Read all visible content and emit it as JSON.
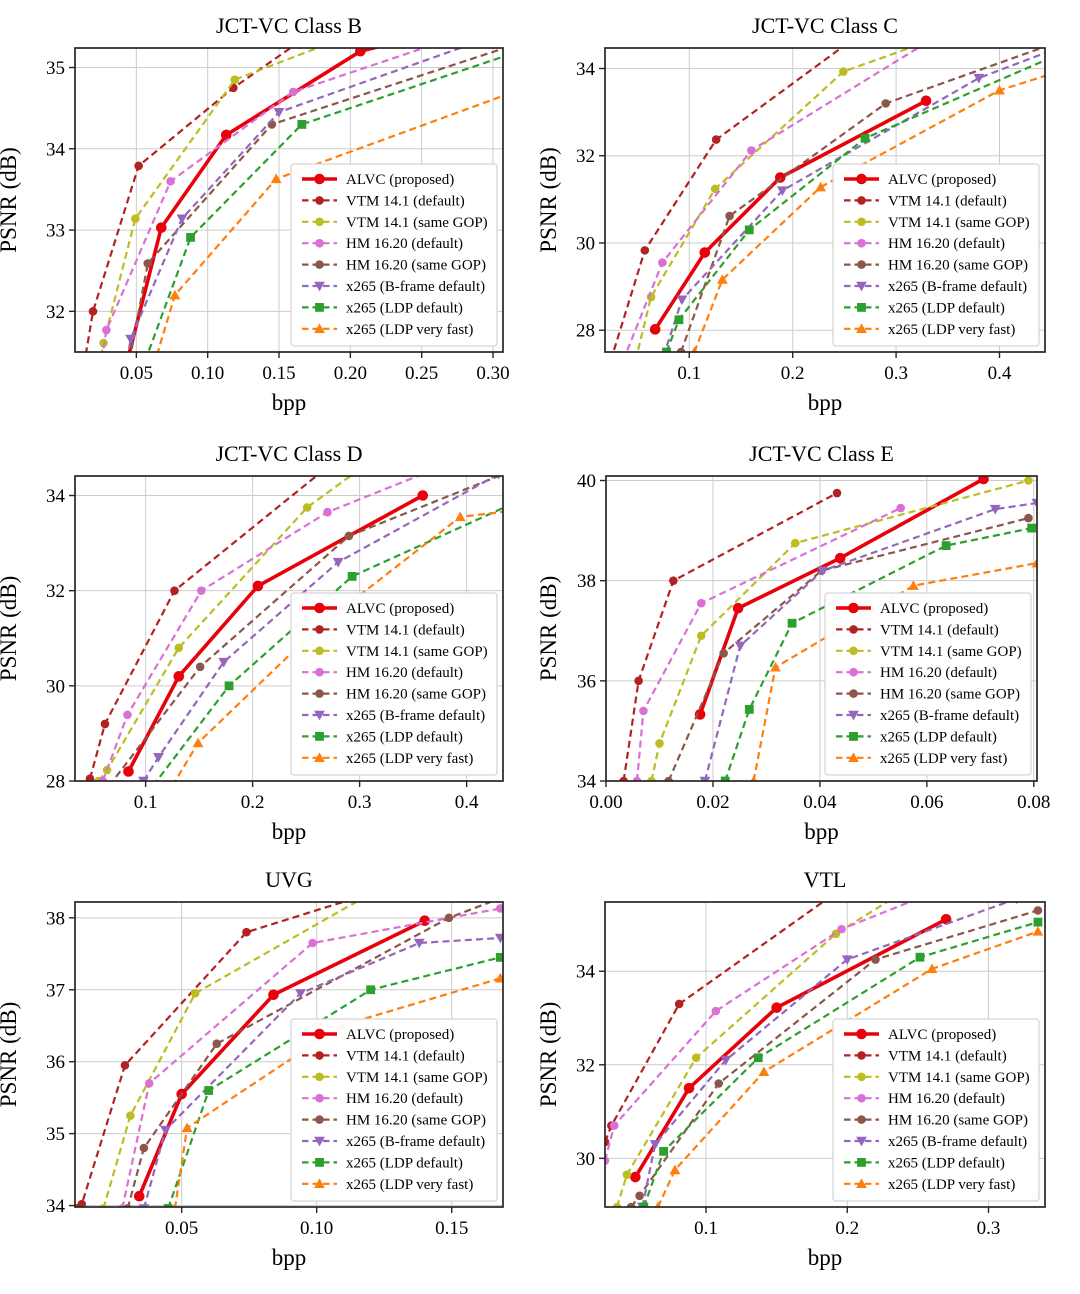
{
  "figure": {
    "background": "#ffffff",
    "grid_color": "#cccccc",
    "spine_color": "#262626",
    "legend_border_color": "#d5d5d5",
    "legend_background": "#ffffff"
  },
  "series_styles": [
    {
      "name": "ALVC (proposed)",
      "color": "#e8000b",
      "line": "solid",
      "width": 3.6,
      "marker": "circle",
      "marker_size": 5.3
    },
    {
      "name": "VTM 14.1 (default)",
      "color": "#b22222",
      "line": "dashed",
      "width": 2.2,
      "marker": "circle",
      "marker_size": 4.3
    },
    {
      "name": "VTM 14.1 (same GOP)",
      "color": "#bcbd22",
      "line": "dashed",
      "width": 2.2,
      "marker": "circle",
      "marker_size": 4.3
    },
    {
      "name": "HM 16.20 (default)",
      "color": "#da70d6",
      "line": "dashed",
      "width": 2.2,
      "marker": "circle",
      "marker_size": 4.3
    },
    {
      "name": "HM 16.20 (same GOP)",
      "color": "#8c564b",
      "line": "dashed",
      "width": 2.2,
      "marker": "circle",
      "marker_size": 4.3
    },
    {
      "name": "x265 (B-frame default)",
      "color": "#9467bd",
      "line": "dashed",
      "width": 2.2,
      "marker": "triangle-down",
      "marker_size": 5.4
    },
    {
      "name": "x265 (LDP default)",
      "color": "#2ca02c",
      "line": "dashed",
      "width": 2.2,
      "marker": "square",
      "marker_size": 4.4
    },
    {
      "name": "x265 (LDP very fast)",
      "color": "#ff7f0e",
      "line": "dashed",
      "width": 2.2,
      "marker": "triangle-up",
      "marker_size": 5.4
    }
  ],
  "chart_data": [
    {
      "id": "jctvc-class-b",
      "type": "line",
      "title": "JCT-VC Class B",
      "xlabel": "bpp",
      "ylabel": "PSNR (dB)",
      "xlim": [
        0.007,
        0.307
      ],
      "ylim": [
        31.5,
        35.24
      ],
      "xticks": [
        0.05,
        0.1,
        0.15,
        0.2,
        0.25,
        0.3
      ],
      "xtick_labels": [
        "0.05",
        "0.10",
        "0.15",
        "0.20",
        "0.25",
        "0.30"
      ],
      "yticks": [
        32,
        33,
        34,
        35
      ],
      "ytick_labels": [
        "32",
        "33",
        "34",
        "35"
      ],
      "grid": true,
      "legend_position": "lower right",
      "series": [
        {
          "name": "ALVC (proposed)",
          "x": [
            0.038,
            0.0675,
            0.113,
            0.207,
            0.23
          ],
          "y": [
            31.0,
            33.03,
            34.17,
            35.2,
            35.3
          ]
        },
        {
          "name": "VTM 14.1 (default)",
          "x": [
            0.012,
            0.0196,
            0.0516,
            0.118,
            0.19
          ],
          "y": [
            31.2,
            32.0,
            33.79,
            34.75,
            35.63
          ]
        },
        {
          "name": "VTM 14.1 (same GOP)",
          "x": [
            0.02,
            0.027,
            0.0493,
            0.119,
            0.19
          ],
          "y": [
            30.9,
            31.61,
            33.14,
            34.85,
            35.33
          ]
        },
        {
          "name": "HM 16.20 (default)",
          "x": [
            0.022,
            0.029,
            0.074,
            0.16,
            0.27
          ],
          "y": [
            31.0,
            31.77,
            33.6,
            34.7,
            35.35
          ]
        },
        {
          "name": "HM 16.20 (same GOP)",
          "x": [
            0.041,
            0.058,
            0.145,
            0.31
          ],
          "y": [
            31.0,
            32.59,
            34.3,
            35.25
          ]
        },
        {
          "name": "x265 (B-frame default)",
          "x": [
            0.04,
            0.046,
            0.082,
            0.15,
            0.29
          ],
          "y": [
            31.0,
            31.66,
            33.14,
            34.45,
            35.32
          ]
        },
        {
          "name": "x265 (LDP default)",
          "x": [
            0.048,
            0.088,
            0.166,
            0.31
          ],
          "y": [
            31.0,
            32.91,
            34.3,
            35.15
          ]
        },
        {
          "name": "x265 (LDP very fast)",
          "x": [
            0.06,
            0.077,
            0.148,
            0.31
          ],
          "y": [
            31.2,
            32.2,
            33.63,
            34.67
          ]
        }
      ]
    },
    {
      "id": "jctvc-class-c",
      "type": "line",
      "title": "JCT-VC Class C",
      "xlabel": "bpp",
      "ylabel": "PSNR (dB)",
      "xlim": [
        0.0185,
        0.444
      ],
      "ylim": [
        27.5,
        34.47
      ],
      "xticks": [
        0.1,
        0.2,
        0.3,
        0.4
      ],
      "xtick_labels": [
        "0.1",
        "0.2",
        "0.3",
        "0.4"
      ],
      "yticks": [
        28,
        30,
        32,
        34
      ],
      "ytick_labels": [
        "28",
        "30",
        "32",
        "34"
      ],
      "grid": true,
      "legend_position": "lower right",
      "series": [
        {
          "name": "ALVC (proposed)",
          "x": [
            0.067,
            0.115,
            0.188,
            0.329
          ],
          "y": [
            28.02,
            29.78,
            31.5,
            33.26
          ]
        },
        {
          "name": "VTM 14.1 (default)",
          "x": [
            0.024,
            0.057,
            0.126,
            0.26
          ],
          "y": [
            27.3,
            29.83,
            32.37,
            34.7
          ]
        },
        {
          "name": "VTM 14.1 (same GOP)",
          "x": [
            0.048,
            0.063,
            0.125,
            0.249,
            0.34
          ],
          "y": [
            27.3,
            28.76,
            31.24,
            33.93,
            34.7
          ]
        },
        {
          "name": "HM 16.20 (default)",
          "x": [
            0.036,
            0.074,
            0.16,
            0.33
          ],
          "y": [
            27.3,
            29.55,
            32.12,
            34.6
          ]
        },
        {
          "name": "HM 16.20 (same GOP)",
          "x": [
            0.092,
            0.139,
            0.29,
            0.45
          ],
          "y": [
            27.5,
            30.62,
            33.2,
            34.55
          ]
        },
        {
          "name": "x265 (B-frame default)",
          "x": [
            0.075,
            0.093,
            0.19,
            0.38,
            0.46
          ],
          "y": [
            27.4,
            28.7,
            31.2,
            33.78,
            34.5
          ]
        },
        {
          "name": "x265 (LDP default)",
          "x": [
            0.078,
            0.09,
            0.158,
            0.27,
            0.46
          ],
          "y": [
            27.5,
            28.24,
            30.3,
            32.4,
            34.35
          ]
        },
        {
          "name": "x265 (LDP very fast)",
          "x": [
            0.105,
            0.132,
            0.227,
            0.4,
            0.46
          ],
          "y": [
            27.5,
            29.16,
            31.28,
            33.5,
            33.95
          ]
        }
      ]
    },
    {
      "id": "jctvc-class-d",
      "type": "line",
      "title": "JCT-VC Class D",
      "xlabel": "bpp",
      "ylabel": "PSNR (dB)",
      "xlim": [
        0.034,
        0.434
      ],
      "ylim": [
        28.0,
        34.41
      ],
      "xticks": [
        0.1,
        0.2,
        0.3,
        0.4
      ],
      "xtick_labels": [
        "0.1",
        "0.2",
        "0.3",
        "0.4"
      ],
      "yticks": [
        28,
        30,
        32,
        34
      ],
      "ytick_labels": [
        "28",
        "30",
        "32",
        "34"
      ],
      "grid": true,
      "legend_position": "lower right",
      "series": [
        {
          "name": "ALVC (proposed)",
          "x": [
            0.084,
            0.131,
            0.205,
            0.359
          ],
          "y": [
            28.2,
            30.2,
            32.1,
            34.0
          ]
        },
        {
          "name": "VTM 14.1 (default)",
          "x": [
            0.048,
            0.062,
            0.127,
            0.27
          ],
          "y": [
            28.05,
            29.2,
            32.0,
            34.6
          ]
        },
        {
          "name": "VTM 14.1 (same GOP)",
          "x": [
            0.056,
            0.064,
            0.131,
            0.251,
            0.3
          ],
          "y": [
            28.0,
            28.23,
            30.8,
            33.75,
            34.55
          ]
        },
        {
          "name": "HM 16.20 (default)",
          "x": [
            0.06,
            0.083,
            0.152,
            0.27,
            0.37
          ],
          "y": [
            28.0,
            29.39,
            32.0,
            33.65,
            34.55
          ]
        },
        {
          "name": "HM 16.20 (same GOP)",
          "x": [
            0.066,
            0.151,
            0.29,
            0.44
          ],
          "y": [
            27.9,
            30.4,
            33.15,
            34.5
          ]
        },
        {
          "name": "x265 (B-frame default)",
          "x": [
            0.098,
            0.112,
            0.173,
            0.28,
            0.43
          ],
          "y": [
            28.0,
            28.5,
            30.5,
            32.6,
            34.45
          ]
        },
        {
          "name": "x265 (LDP default)",
          "x": [
            0.107,
            0.178,
            0.293,
            0.45
          ],
          "y": [
            27.9,
            30.0,
            32.3,
            33.9
          ]
        },
        {
          "name": "x265 (LDP very fast)",
          "x": [
            0.125,
            0.149,
            0.26,
            0.394,
            0.45
          ],
          "y": [
            27.9,
            28.8,
            31.2,
            33.55,
            33.7
          ]
        }
      ]
    },
    {
      "id": "jctvc-class-e",
      "type": "line",
      "title": "JCT-VC Class E",
      "xlabel": "bpp",
      "ylabel": "PSNR (dB)",
      "xlim": [
        0.0,
        0.0806
      ],
      "ylim": [
        34.0,
        40.09
      ],
      "xticks": [
        0.0,
        0.02,
        0.04,
        0.06,
        0.08
      ],
      "xtick_labels": [
        "0.00",
        "0.02",
        "0.04",
        "0.06",
        "0.08"
      ],
      "yticks": [
        34,
        36,
        38,
        40
      ],
      "ytick_labels": [
        "34",
        "36",
        "38",
        "40"
      ],
      "grid": true,
      "legend_position": "lower right",
      "series": [
        {
          "name": "ALVC (proposed)",
          "x": [
            0.0176,
            0.0247,
            0.0438,
            0.0706
          ],
          "y": [
            35.33,
            37.45,
            38.45,
            40.03
          ]
        },
        {
          "name": "VTM 14.1 (default)",
          "x": [
            0.0033,
            0.0061,
            0.0126,
            0.0432
          ],
          "y": [
            34.0,
            36.0,
            38.0,
            39.75
          ]
        },
        {
          "name": "VTM 14.1 (same GOP)",
          "x": [
            0.0085,
            0.01,
            0.0178,
            0.0354,
            0.079
          ],
          "y": [
            34.0,
            34.75,
            36.9,
            38.75,
            40.0
          ]
        },
        {
          "name": "HM 16.20 (default)",
          "x": [
            0.0058,
            0.007,
            0.0178,
            0.0551
          ],
          "y": [
            34.0,
            35.4,
            37.55,
            39.45
          ]
        },
        {
          "name": "HM 16.20 (same GOP)",
          "x": [
            0.0117,
            0.022,
            0.0403,
            0.079
          ],
          "y": [
            34.0,
            36.55,
            38.2,
            39.25
          ]
        },
        {
          "name": "x265 (B-frame default)",
          "x": [
            0.0185,
            0.0251,
            0.0405,
            0.0728,
            0.0806
          ],
          "y": [
            34.0,
            36.7,
            38.2,
            39.43,
            39.55
          ]
        },
        {
          "name": "x265 (LDP default)",
          "x": [
            0.0223,
            0.0268,
            0.0348,
            0.0636,
            0.0796
          ],
          "y": [
            34.0,
            35.43,
            37.15,
            38.7,
            39.05
          ]
        },
        {
          "name": "x265 (LDP very fast)",
          "x": [
            0.0276,
            0.0317,
            0.0575,
            0.0806
          ],
          "y": [
            34.0,
            36.27,
            37.9,
            38.35
          ]
        }
      ]
    },
    {
      "id": "uvg",
      "type": "line",
      "title": "UVG",
      "xlabel": "bpp",
      "ylabel": "PSNR (dB)",
      "xlim": [
        0.0105,
        0.169
      ],
      "ylim": [
        33.98,
        38.22
      ],
      "xticks": [
        0.05,
        0.1,
        0.15
      ],
      "xtick_labels": [
        "0.05",
        "0.10",
        "0.15"
      ],
      "yticks": [
        34,
        35,
        36,
        37,
        38
      ],
      "ytick_labels": [
        "34",
        "35",
        "36",
        "37",
        "38"
      ],
      "grid": true,
      "legend_position": "lower right",
      "series": [
        {
          "name": "ALVC (proposed)",
          "x": [
            0.0343,
            0.05,
            0.084,
            0.14
          ],
          "y": [
            34.13,
            35.55,
            36.93,
            37.96
          ]
        },
        {
          "name": "VTM 14.1 (default)",
          "x": [
            0.011,
            0.013,
            0.029,
            0.074,
            0.125
          ],
          "y": [
            33.96,
            34.02,
            35.95,
            37.8,
            38.4
          ]
        },
        {
          "name": "VTM 14.1 (same GOP)",
          "x": [
            0.021,
            0.031,
            0.055,
            0.13
          ],
          "y": [
            33.96,
            35.25,
            36.95,
            38.55
          ]
        },
        {
          "name": "HM 16.20 (default)",
          "x": [
            0.028,
            0.038,
            0.0985,
            0.168
          ],
          "y": [
            33.96,
            35.7,
            37.65,
            38.13
          ]
        },
        {
          "name": "HM 16.20 (same GOP)",
          "x": [
            0.03,
            0.036,
            0.063,
            0.149,
            0.17
          ],
          "y": [
            33.96,
            34.8,
            36.25,
            38.0,
            38.3
          ]
        },
        {
          "name": "x265 (B-frame default)",
          "x": [
            0.036,
            0.044,
            0.094,
            0.138,
            0.168
          ],
          "y": [
            33.96,
            35.05,
            36.95,
            37.65,
            37.72
          ]
        },
        {
          "name": "x265 (LDP default)",
          "x": [
            0.045,
            0.06,
            0.12,
            0.168
          ],
          "y": [
            33.96,
            35.6,
            37.0,
            37.45
          ]
        },
        {
          "name": "x265 (LDP very fast)",
          "x": [
            0.0475,
            0.052,
            0.109,
            0.168
          ],
          "y": [
            33.96,
            35.08,
            36.5,
            37.16
          ]
        }
      ]
    },
    {
      "id": "vtl",
      "type": "line",
      "title": "VTL",
      "xlabel": "bpp",
      "ylabel": "PSNR (dB)",
      "xlim": [
        0.0285,
        0.34
      ],
      "ylim": [
        28.96,
        35.48
      ],
      "xticks": [
        0.1,
        0.2,
        0.3
      ],
      "xtick_labels": [
        "0.1",
        "0.2",
        "0.3"
      ],
      "yticks": [
        30,
        32,
        34
      ],
      "ytick_labels": [
        "30",
        "32",
        "34"
      ],
      "grid": true,
      "legend_position": "lower right",
      "series": [
        {
          "name": "ALVC (proposed)",
          "x": [
            0.05,
            0.088,
            0.15,
            0.27
          ],
          "y": [
            29.6,
            31.5,
            33.22,
            35.11
          ]
        },
        {
          "name": "VTM 14.1 (default)",
          "x": [
            0.0285,
            0.033,
            0.081,
            0.2
          ],
          "y": [
            30.35,
            30.7,
            33.3,
            35.85
          ]
        },
        {
          "name": "VTM 14.1 (same GOP)",
          "x": [
            0.037,
            0.044,
            0.093,
            0.192,
            0.24
          ],
          "y": [
            28.96,
            29.65,
            32.15,
            34.8,
            35.7
          ]
        },
        {
          "name": "HM 16.20 (default)",
          "x": [
            0.0285,
            0.035,
            0.107,
            0.196,
            0.25
          ],
          "y": [
            29.95,
            30.7,
            33.15,
            34.9,
            35.55
          ]
        },
        {
          "name": "HM 16.20 (same GOP)",
          "x": [
            0.047,
            0.053,
            0.109,
            0.22,
            0.335
          ],
          "y": [
            28.96,
            29.2,
            31.6,
            34.25,
            35.3
          ]
        },
        {
          "name": "x265 (B-frame default)",
          "x": [
            0.055,
            0.064,
            0.114,
            0.2,
            0.32
          ],
          "y": [
            28.96,
            30.3,
            32.1,
            34.25,
            35.55
          ]
        },
        {
          "name": "x265 (LDP default)",
          "x": [
            0.056,
            0.07,
            0.137,
            0.2515,
            0.335
          ],
          "y": [
            28.96,
            30.15,
            32.15,
            34.3,
            35.05
          ]
        },
        {
          "name": "x265 (LDP very fast)",
          "x": [
            0.066,
            0.078,
            0.141,
            0.26,
            0.335
          ],
          "y": [
            28.96,
            29.75,
            31.85,
            34.05,
            34.85
          ]
        }
      ]
    }
  ]
}
